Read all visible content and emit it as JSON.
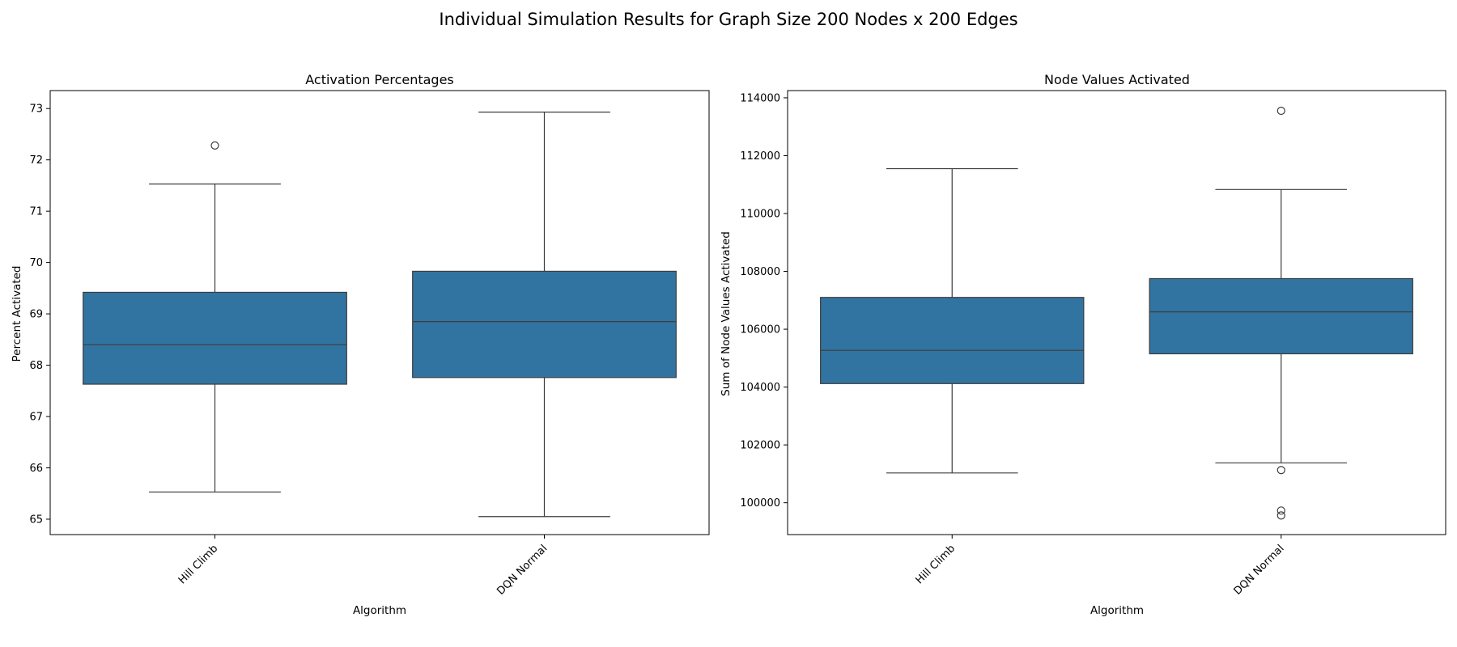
{
  "figure": {
    "title": "Individual Simulation Results for Graph Size 200 Nodes x 200 Edges"
  },
  "colors": {
    "box_fill": "#3274a1",
    "line": "#3d3d3d",
    "frame": "#000000",
    "background": "#ffffff"
  },
  "chart_data": [
    {
      "type": "box",
      "title": "Activation Percentages",
      "xlabel": "Algorithm",
      "ylabel": "Percent Activated",
      "categories": [
        "Hill Climb",
        "DQN Normal"
      ],
      "ylim": [
        64.7,
        73.35
      ],
      "yticks": [
        65,
        66,
        67,
        68,
        69,
        70,
        71,
        72,
        73
      ],
      "yticklabels": [
        "65",
        "66",
        "67",
        "68",
        "69",
        "70",
        "71",
        "72",
        "73"
      ],
      "grid": false,
      "boxes": [
        {
          "category": "Hill Climb",
          "whisker_low": 65.53,
          "q1": 67.63,
          "median": 68.4,
          "q3": 69.42,
          "whisker_high": 71.53,
          "outliers": [
            72.28
          ]
        },
        {
          "category": "DQN Normal",
          "whisker_low": 65.05,
          "q1": 67.76,
          "median": 68.85,
          "q3": 69.83,
          "whisker_high": 72.93,
          "outliers": []
        }
      ]
    },
    {
      "type": "box",
      "title": "Node Values Activated",
      "xlabel": "Algorithm",
      "ylabel": "Sum of Node Values Activated",
      "categories": [
        "Hill Climb",
        "DQN Normal"
      ],
      "ylim": [
        98900,
        114250
      ],
      "yticks": [
        100000,
        102000,
        104000,
        106000,
        108000,
        110000,
        112000,
        114000
      ],
      "yticklabels": [
        "100000",
        "102000",
        "104000",
        "106000",
        "108000",
        "110000",
        "112000",
        "114000"
      ],
      "grid": false,
      "boxes": [
        {
          "category": "Hill Climb",
          "whisker_low": 101030,
          "q1": 104120,
          "median": 105270,
          "q3": 107100,
          "whisker_high": 111550,
          "outliers": []
        },
        {
          "category": "DQN Normal",
          "whisker_low": 101380,
          "q1": 105150,
          "median": 106600,
          "q3": 107750,
          "whisker_high": 110830,
          "outliers": [
            113550,
            101130,
            99730,
            99560
          ]
        }
      ]
    }
  ]
}
